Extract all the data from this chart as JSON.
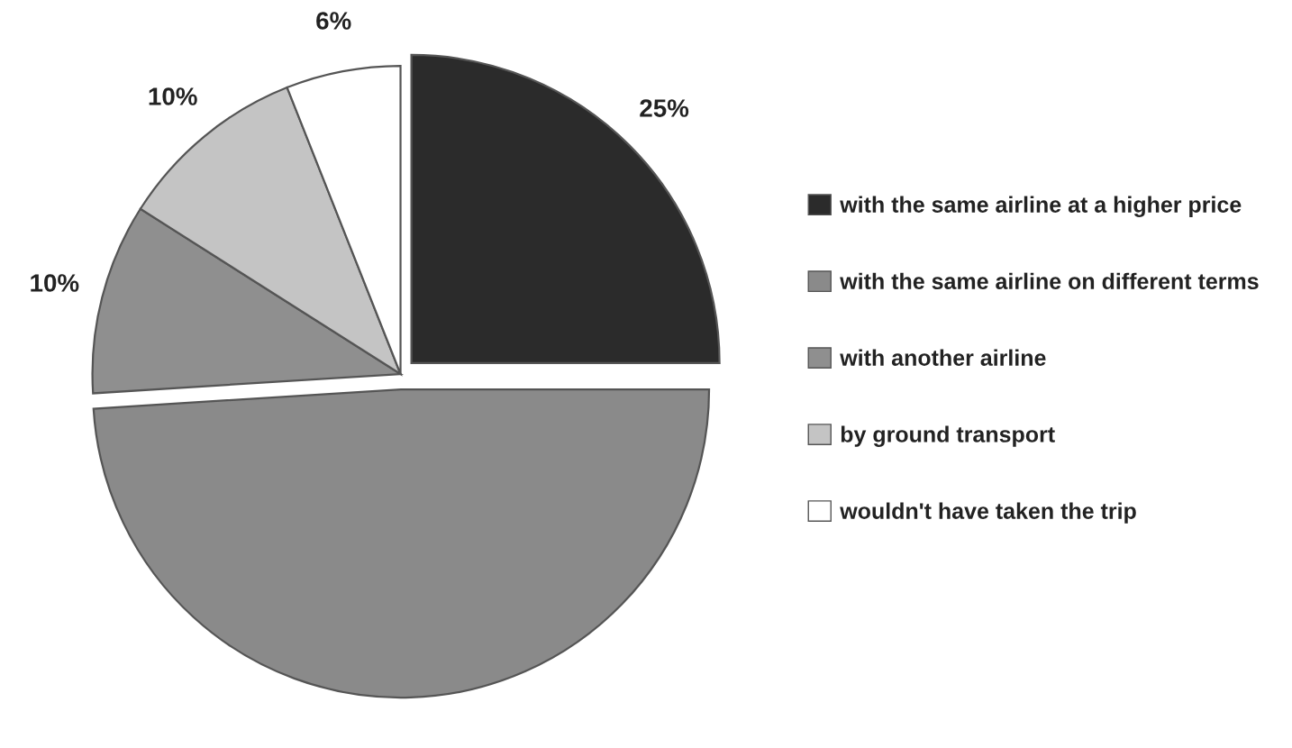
{
  "chart_data": {
    "type": "pie",
    "categories": [
      "with the same airline at a higher price",
      "with the same airline on different terms",
      "with another airline",
      "by ground transport",
      "wouldn't have taken the trip"
    ],
    "values": [
      25,
      49,
      10,
      10,
      6
    ],
    "value_labels": [
      "25%",
      null,
      "10%",
      "10%",
      "6%"
    ],
    "colors": [
      "#2b2b2b",
      "#8a8a8a",
      "#8f8f8f",
      "#c4c4c4",
      "#ffffff"
    ],
    "legend": "right"
  }
}
